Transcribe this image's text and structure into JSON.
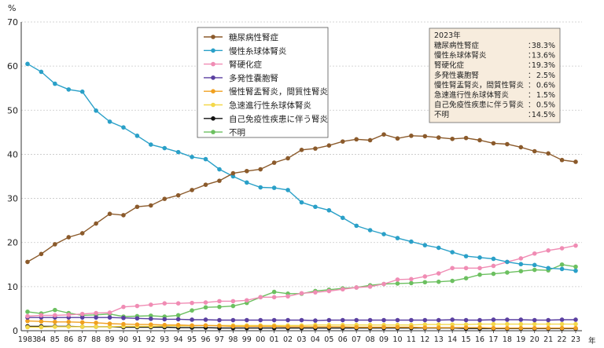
{
  "chart_data": {
    "type": "line",
    "y_unit": "%",
    "x_unit": "年",
    "ylim": [
      0,
      70
    ],
    "y_ticks": [
      0,
      10,
      20,
      30,
      40,
      50,
      60,
      70
    ],
    "grid": "horizontal dotted",
    "legend_position": "top-center",
    "x": [
      "1983",
      "84",
      "85",
      "86",
      "87",
      "88",
      "89",
      "90",
      "91",
      "92",
      "93",
      "94",
      "95",
      "96",
      "97",
      "98",
      "99",
      "00",
      "01",
      "02",
      "03",
      "04",
      "05",
      "06",
      "07",
      "08",
      "09",
      "10",
      "11",
      "12",
      "13",
      "14",
      "15",
      "16",
      "17",
      "18",
      "19",
      "20",
      "21",
      "22",
      "23"
    ],
    "series": [
      {
        "name": "糖尿病性腎症",
        "color": "#8b5a2b",
        "values": [
          15.6,
          17.4,
          19.6,
          21.2,
          22.1,
          24.3,
          26.5,
          26.2,
          28.1,
          28.4,
          29.9,
          30.7,
          31.9,
          33.1,
          34.0,
          35.7,
          36.2,
          36.6,
          38.1,
          39.1,
          41.0,
          41.3,
          42.0,
          42.9,
          43.4,
          43.2,
          44.5,
          43.6,
          44.2,
          44.1,
          43.8,
          43.5,
          43.7,
          43.2,
          42.5,
          42.3,
          41.6,
          40.7,
          40.2,
          38.7,
          38.3
        ]
      },
      {
        "name": "慢性糸球体腎炎",
        "color": "#2aa0c8",
        "values": [
          60.5,
          58.7,
          56.0,
          54.7,
          54.2,
          49.9,
          47.4,
          46.1,
          44.2,
          42.2,
          41.4,
          40.5,
          39.4,
          38.9,
          36.6,
          35.0,
          33.6,
          32.5,
          32.4,
          31.9,
          29.1,
          28.1,
          27.3,
          25.6,
          23.8,
          22.8,
          21.9,
          21.0,
          20.2,
          19.4,
          18.8,
          17.8,
          16.9,
          16.6,
          16.3,
          15.6,
          15.1,
          14.9,
          14.2,
          14.0,
          13.6
        ]
      },
      {
        "name": "腎硬化症",
        "color": "#f08cb4",
        "values": [
          3.3,
          3.5,
          3.5,
          3.6,
          3.8,
          4.0,
          4.1,
          5.4,
          5.6,
          5.9,
          6.2,
          6.2,
          6.3,
          6.4,
          6.7,
          6.7,
          6.9,
          7.6,
          7.6,
          7.8,
          8.5,
          8.7,
          9.0,
          9.4,
          9.8,
          10.0,
          10.6,
          11.6,
          11.7,
          12.3,
          13.0,
          14.2,
          14.2,
          14.2,
          14.7,
          15.6,
          16.4,
          17.5,
          18.2,
          18.7,
          19.3
        ]
      },
      {
        "name": "多発性嚢胞腎",
        "color": "#5a3fa0",
        "values": [
          3.0,
          3.0,
          3.0,
          3.0,
          3.0,
          3.0,
          3.0,
          2.9,
          2.8,
          2.7,
          2.6,
          2.6,
          2.5,
          2.5,
          2.4,
          2.4,
          2.4,
          2.4,
          2.4,
          2.4,
          2.4,
          2.3,
          2.4,
          2.4,
          2.4,
          2.4,
          2.4,
          2.4,
          2.4,
          2.4,
          2.4,
          2.5,
          2.4,
          2.4,
          2.5,
          2.5,
          2.5,
          2.4,
          2.4,
          2.5,
          2.5
        ]
      },
      {
        "name": "慢性腎盂腎炎，間質性腎炎",
        "color": "#f0a020",
        "values": [
          2.2,
          2.1,
          2.0,
          2.0,
          1.9,
          1.8,
          1.6,
          1.5,
          1.4,
          1.4,
          1.3,
          1.3,
          1.2,
          1.2,
          1.1,
          1.0,
          1.0,
          1.0,
          1.0,
          0.9,
          0.9,
          0.9,
          0.9,
          0.9,
          0.8,
          0.8,
          0.8,
          0.8,
          0.8,
          0.7,
          0.7,
          0.7,
          0.7,
          0.7,
          0.6,
          0.6,
          0.6,
          0.6,
          0.6,
          0.6,
          0.6
        ]
      },
      {
        "name": "急速進行性糸球体腎炎",
        "color": "#f4d84a",
        "values": [
          0.8,
          0.8,
          0.9,
          0.9,
          0.9,
          0.9,
          0.9,
          1.0,
          1.0,
          1.0,
          1.1,
          1.1,
          1.1,
          1.2,
          1.2,
          1.2,
          1.2,
          1.2,
          1.2,
          1.2,
          1.2,
          1.3,
          1.3,
          1.3,
          1.3,
          1.3,
          1.3,
          1.3,
          1.3,
          1.4,
          1.4,
          1.4,
          1.4,
          1.5,
          1.5,
          1.5,
          1.5,
          1.5,
          1.5,
          1.5,
          1.5
        ]
      },
      {
        "name": "自己免疫性疾患に伴う腎炎",
        "color": "#111111",
        "values": [
          1.0,
          1.0,
          1.0,
          1.0,
          0.9,
          0.9,
          0.9,
          0.8,
          0.8,
          0.8,
          0.8,
          0.7,
          0.7,
          0.7,
          0.6,
          0.6,
          0.6,
          0.6,
          0.6,
          0.6,
          0.6,
          0.6,
          0.6,
          0.6,
          0.6,
          0.6,
          0.6,
          0.6,
          0.6,
          0.6,
          0.6,
          0.6,
          0.5,
          0.5,
          0.5,
          0.5,
          0.5,
          0.5,
          0.5,
          0.5,
          0.5
        ]
      },
      {
        "name": "不明",
        "color": "#6cc060",
        "values": [
          4.3,
          3.9,
          4.7,
          4.0,
          3.5,
          3.6,
          3.8,
          3.2,
          3.3,
          3.4,
          3.2,
          3.5,
          4.6,
          5.3,
          5.4,
          5.6,
          6.3,
          7.6,
          8.8,
          8.4,
          8.4,
          9.0,
          9.3,
          9.6,
          9.8,
          10.3,
          10.6,
          10.7,
          10.8,
          11.0,
          11.1,
          11.3,
          11.9,
          12.7,
          12.9,
          13.2,
          13.5,
          13.8,
          13.7,
          15.0,
          14.5
        ]
      }
    ],
    "summary_box": {
      "title": "2023年",
      "rows": [
        {
          "label": "糖尿病性腎症",
          "value": "38.3%"
        },
        {
          "label": "慢性糸球体腎炎",
          "value": "13.6%"
        },
        {
          "label": "腎硬化症",
          "value": "19.3%"
        },
        {
          "label": "多発性嚢胞腎",
          "value": "2.5%"
        },
        {
          "label": "慢性腎盂腎炎，間質性腎炎",
          "value": "0.6%"
        },
        {
          "label": "急速進行性糸球体腎炎",
          "value": "1.5%"
        },
        {
          "label": "自己免疫性疾患に伴う腎炎",
          "value": "0.5%"
        },
        {
          "label": "不明",
          "value": "14.5%"
        }
      ]
    }
  },
  "colors": {
    "grid": "#c8c8c8",
    "axis": "#333333",
    "summary_bg": "#f7ecdd",
    "summary_border": "#666666"
  }
}
